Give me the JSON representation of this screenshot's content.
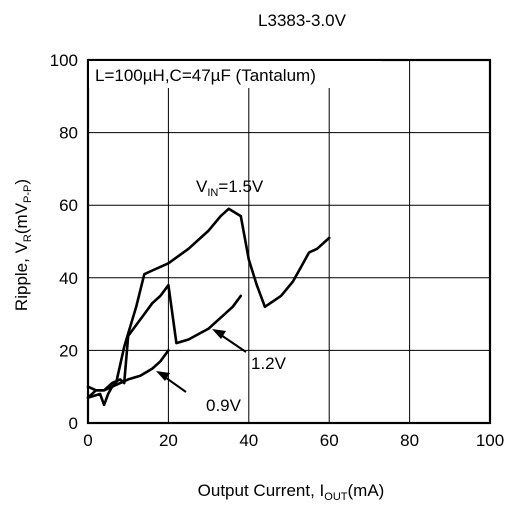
{
  "chart_data": {
    "type": "line",
    "title": "L3383-3.0V",
    "xlabel": {
      "main": "Output Current, I",
      "sub": "OUT",
      "unit": "(mA)"
    },
    "ylabel": {
      "main": "Ripple, V",
      "sub1": "R",
      "mid": "(mV",
      "sub2": "P-P",
      "end": ")"
    },
    "xlim": [
      0,
      100
    ],
    "ylim": [
      0,
      100
    ],
    "grid": true,
    "x_ticks": [
      "0",
      "20",
      "40",
      "60",
      "80",
      "100"
    ],
    "y_ticks": [
      "0",
      "20",
      "40",
      "60",
      "80",
      "100"
    ],
    "conditions": "L=100µH,C=47µF (Tantalum)",
    "series": [
      {
        "name": "V_IN=1.5V",
        "points": [
          [
            0,
            7
          ],
          [
            3,
            8
          ],
          [
            4,
            5
          ],
          [
            5,
            8
          ],
          [
            6,
            10
          ],
          [
            7,
            11
          ],
          [
            9,
            21
          ],
          [
            12,
            32
          ],
          [
            14,
            41
          ],
          [
            16,
            42
          ],
          [
            20,
            44
          ],
          [
            25,
            48
          ],
          [
            30,
            53
          ],
          [
            33,
            57
          ],
          [
            35,
            59
          ],
          [
            38,
            57
          ],
          [
            40,
            45
          ],
          [
            42,
            38
          ],
          [
            44,
            32
          ],
          [
            48,
            35
          ],
          [
            51,
            39
          ],
          [
            53,
            43
          ],
          [
            55,
            47
          ],
          [
            57,
            48
          ],
          [
            59,
            50
          ],
          [
            60,
            51
          ]
        ]
      },
      {
        "name": "1.2V",
        "points": [
          [
            0,
            7
          ],
          [
            2,
            9
          ],
          [
            4,
            9
          ],
          [
            6,
            11
          ],
          [
            8,
            12
          ],
          [
            9,
            11
          ],
          [
            10,
            24
          ],
          [
            12,
            27
          ],
          [
            14,
            30
          ],
          [
            16,
            33
          ],
          [
            18,
            35
          ],
          [
            20,
            38
          ],
          [
            22,
            22
          ],
          [
            25,
            23
          ],
          [
            30,
            26
          ],
          [
            33,
            29
          ],
          [
            36,
            32
          ],
          [
            38,
            35
          ]
        ]
      },
      {
        "name": "0.9V",
        "points": [
          [
            0,
            10
          ],
          [
            2,
            9
          ],
          [
            4,
            9
          ],
          [
            6,
            10
          ],
          [
            8,
            11
          ],
          [
            10,
            12
          ],
          [
            13,
            13
          ],
          [
            16,
            15
          ],
          [
            18,
            17
          ],
          [
            20,
            20
          ]
        ]
      }
    ],
    "annotations": [
      {
        "text": "V",
        "sub": "IN",
        "rest": "=1.5V"
      },
      {
        "text": "1.2V"
      },
      {
        "text": "0.9V"
      }
    ]
  }
}
